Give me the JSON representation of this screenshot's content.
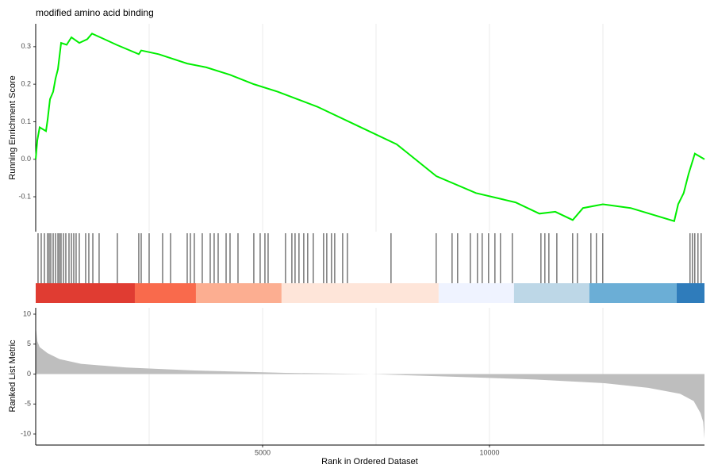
{
  "chart_data": [
    {
      "type": "line",
      "title": "modified amino acid binding",
      "ylabel": "Running Enrichment Score",
      "color": "#00ee00",
      "x": [
        0,
        35,
        87,
        227,
        262,
        315,
        385,
        437,
        490,
        560,
        682,
        787,
        961,
        1136,
        1241,
        1783,
        2272,
        2325,
        2710,
        3339,
        3758,
        4283,
        4807,
        5331,
        6206,
        7080,
        7954,
        8828,
        9701,
        10575,
        11100,
        11450,
        11834,
        12061,
        12498,
        13110,
        14071,
        14158,
        14280,
        14386,
        14526,
        14738
      ],
      "values": [
        0,
        0.05,
        0.085,
        0.075,
        0.105,
        0.16,
        0.18,
        0.215,
        0.24,
        0.31,
        0.305,
        0.325,
        0.31,
        0.32,
        0.335,
        0.305,
        0.28,
        0.29,
        0.28,
        0.255,
        0.245,
        0.225,
        0.2,
        0.18,
        0.14,
        0.09,
        0.04,
        -0.045,
        -0.09,
        -0.115,
        -0.145,
        -0.14,
        -0.162,
        -0.13,
        -0.12,
        -0.13,
        -0.165,
        -0.12,
        -0.09,
        -0.04,
        0.015,
        0
      ],
      "xlim": [
        0,
        14738
      ],
      "ylim": [
        -0.193,
        0.361
      ],
      "yticks": [
        -0.1,
        {
          "value": 0,
          "label": "0.0"
        },
        0.1,
        0.2,
        0.3
      ],
      "xgrid": [
        2500,
        5000,
        7500,
        10000,
        12500
      ]
    },
    {
      "type": "rug",
      "color": "#000000",
      "x": [
        52,
        122,
        192,
        262,
        297,
        332,
        385,
        437,
        490,
        524,
        559,
        612,
        664,
        734,
        787,
        839,
        891,
        961,
        1101,
        1171,
        1259,
        1398,
        1800,
        2272,
        2325,
        2500,
        2797,
        2972,
        3339,
        3409,
        3496,
        3671,
        3846,
        3933,
        4021,
        4196,
        4283,
        4458,
        4807,
        4947,
        5052,
        5122,
        5506,
        5646,
        5716,
        5803,
        5908,
        5995,
        6118,
        6345,
        6415,
        6520,
        6590,
        6765,
        6870,
        7831,
        8827,
        9177,
        9299,
        9579,
        9736,
        9841,
        9981,
        10121,
        10243,
        10505,
        11135,
        11222,
        11310,
        11485,
        11834,
        11939,
        12236,
        12358,
        12498,
        14421,
        14474,
        14526,
        14596,
        14666
      ],
      "band_edges": [
        0,
        2185,
        3531,
        5418,
        8880,
        10540,
        12201,
        14124,
        14738
      ],
      "band_colors": [
        "#e03c32",
        "#f96a4c",
        "#fcae91",
        "#fee5d9",
        "#eff3ff",
        "#bdd7e7",
        "#6baed6",
        "#2f7cbb"
      ],
      "xlim": [
        0,
        14738
      ]
    },
    {
      "type": "area",
      "xlabel": "Rank in Ordered Dataset",
      "ylabel": "Ranked List Metric",
      "color": "#bebebe",
      "x": [
        0,
        35,
        87,
        260,
        525,
        1000,
        2000,
        3500,
        5500,
        7400,
        9000,
        11000,
        12500,
        13500,
        14200,
        14500,
        14650,
        14710,
        14738
      ],
      "values": [
        8,
        5.5,
        4.5,
        3.5,
        2.5,
        1.7,
        1.1,
        0.6,
        0.2,
        0,
        -0.4,
        -0.9,
        -1.5,
        -2.3,
        -3.3,
        -4.5,
        -6.5,
        -8,
        -10.8
      ],
      "xlim": [
        0,
        14738
      ],
      "ylim": [
        -11.85,
        11.06
      ],
      "xticks": [
        5000,
        10000
      ],
      "yticks": [
        -10,
        -5,
        0,
        5,
        10
      ],
      "xgrid": [
        2500,
        5000,
        7500,
        10000,
        12500
      ]
    }
  ]
}
